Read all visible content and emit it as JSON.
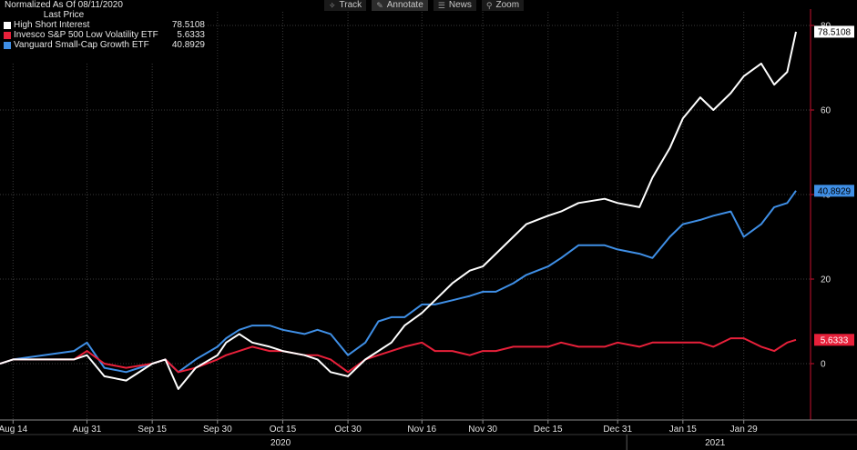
{
  "toolbar": {
    "track": "Track",
    "annotate": "Annotate",
    "news": "News",
    "zoom": "Zoom"
  },
  "legend": {
    "line1": "Normalized As Of 08/11/2020",
    "line2": "Last Price",
    "items": [
      {
        "name": "High Short Interest",
        "value": "78.5108",
        "color": "#ffffff"
      },
      {
        "name": "Invesco S&P 500 Low Volatility ETF",
        "value": "5.6333",
        "color": "#e8203a"
      },
      {
        "name": "Vanguard Small-Cap Growth ETF",
        "value": "40.8929",
        "color": "#3f8fe6"
      }
    ]
  },
  "chart_data": {
    "type": "line",
    "ylim": [
      -14,
      81
    ],
    "y_ticks": [
      0,
      20,
      40,
      60,
      80
    ],
    "x_tick_labels": [
      "Aug 14",
      "Aug 31",
      "Sep 15",
      "Sep 30",
      "Oct 15",
      "Oct 30",
      "Nov 16",
      "Nov 30",
      "Dec 15",
      "Dec 31",
      "Jan 15",
      "Jan 29"
    ],
    "year_labels": [
      "2020",
      "2021"
    ],
    "last_value_labels": [
      "78.5108",
      "40.8929",
      "5.6333"
    ],
    "series": [
      {
        "name": "High Short Interest",
        "color": "#ffffff",
        "x": [
          "2020-08-11",
          "2020-08-14",
          "2020-08-21",
          "2020-08-28",
          "2020-08-31",
          "2020-09-04",
          "2020-09-09",
          "2020-09-15",
          "2020-09-18",
          "2020-09-21",
          "2020-09-25",
          "2020-09-30",
          "2020-10-02",
          "2020-10-05",
          "2020-10-08",
          "2020-10-12",
          "2020-10-15",
          "2020-10-20",
          "2020-10-23",
          "2020-10-26",
          "2020-10-30",
          "2020-11-03",
          "2020-11-06",
          "2020-11-09",
          "2020-11-12",
          "2020-11-16",
          "2020-11-19",
          "2020-11-23",
          "2020-11-27",
          "2020-11-30",
          "2020-12-03",
          "2020-12-07",
          "2020-12-10",
          "2020-12-15",
          "2020-12-18",
          "2020-12-22",
          "2020-12-28",
          "2020-12-31",
          "2021-01-05",
          "2021-01-08",
          "2021-01-12",
          "2021-01-15",
          "2021-01-19",
          "2021-01-22",
          "2021-01-26",
          "2021-01-29",
          "2021-02-02",
          "2021-02-05",
          "2021-02-08",
          "2021-02-10"
        ],
        "values": [
          0,
          1,
          1,
          1,
          2,
          -3,
          -4,
          0,
          1,
          -6,
          -1,
          2,
          5,
          7,
          5,
          4,
          3,
          2,
          1,
          -2,
          -3,
          1,
          3,
          5,
          9,
          12,
          15,
          19,
          22,
          23,
          26,
          30,
          33,
          35,
          36,
          38,
          39,
          38,
          37,
          44,
          51,
          58,
          63,
          60,
          64,
          68,
          71,
          66,
          69,
          78.5108
        ]
      },
      {
        "name": "Invesco S&P 500 Low Volatility ETF",
        "color": "#e8203a",
        "x": [
          "2020-08-11",
          "2020-08-14",
          "2020-08-21",
          "2020-08-28",
          "2020-08-31",
          "2020-09-04",
          "2020-09-09",
          "2020-09-15",
          "2020-09-18",
          "2020-09-21",
          "2020-09-25",
          "2020-09-30",
          "2020-10-02",
          "2020-10-05",
          "2020-10-08",
          "2020-10-12",
          "2020-10-15",
          "2020-10-20",
          "2020-10-23",
          "2020-10-26",
          "2020-10-30",
          "2020-11-03",
          "2020-11-06",
          "2020-11-09",
          "2020-11-12",
          "2020-11-16",
          "2020-11-19",
          "2020-11-23",
          "2020-11-27",
          "2020-11-30",
          "2020-12-03",
          "2020-12-07",
          "2020-12-10",
          "2020-12-15",
          "2020-12-18",
          "2020-12-22",
          "2020-12-28",
          "2020-12-31",
          "2021-01-05",
          "2021-01-08",
          "2021-01-12",
          "2021-01-15",
          "2021-01-19",
          "2021-01-22",
          "2021-01-26",
          "2021-01-29",
          "2021-02-02",
          "2021-02-05",
          "2021-02-08",
          "2021-02-10"
        ],
        "values": [
          0,
          1,
          1,
          1,
          3,
          0,
          -1,
          0,
          1,
          -2,
          -1,
          1,
          2,
          3,
          4,
          3,
          3,
          2,
          2,
          1,
          -2,
          1,
          2,
          3,
          4,
          5,
          3,
          3,
          2,
          3,
          3,
          4,
          4,
          4,
          5,
          4,
          4,
          5,
          4,
          5,
          5,
          5,
          5,
          4,
          6,
          6,
          4,
          3,
          5,
          5.6333
        ]
      },
      {
        "name": "Vanguard Small-Cap Growth ETF",
        "color": "#3f8fe6",
        "x": [
          "2020-08-11",
          "2020-08-14",
          "2020-08-21",
          "2020-08-28",
          "2020-08-31",
          "2020-09-04",
          "2020-09-09",
          "2020-09-15",
          "2020-09-18",
          "2020-09-21",
          "2020-09-25",
          "2020-09-30",
          "2020-10-02",
          "2020-10-05",
          "2020-10-08",
          "2020-10-12",
          "2020-10-15",
          "2020-10-20",
          "2020-10-23",
          "2020-10-26",
          "2020-10-30",
          "2020-11-03",
          "2020-11-06",
          "2020-11-09",
          "2020-11-12",
          "2020-11-16",
          "2020-11-19",
          "2020-11-23",
          "2020-11-27",
          "2020-11-30",
          "2020-12-03",
          "2020-12-07",
          "2020-12-10",
          "2020-12-15",
          "2020-12-18",
          "2020-12-22",
          "2020-12-28",
          "2020-12-31",
          "2021-01-05",
          "2021-01-08",
          "2021-01-12",
          "2021-01-15",
          "2021-01-19",
          "2021-01-22",
          "2021-01-26",
          "2021-01-29",
          "2021-02-02",
          "2021-02-05",
          "2021-02-08",
          "2021-02-10"
        ],
        "values": [
          0,
          1,
          2,
          3,
          5,
          -1,
          -2,
          0,
          1,
          -2,
          1,
          4,
          6,
          8,
          9,
          9,
          8,
          7,
          8,
          7,
          2,
          5,
          10,
          11,
          11,
          14,
          14,
          15,
          16,
          17,
          17,
          19,
          21,
          23,
          25,
          28,
          28,
          27,
          26,
          25,
          30,
          33,
          34,
          35,
          36,
          30,
          33,
          37,
          38,
          40.8929
        ]
      }
    ]
  }
}
